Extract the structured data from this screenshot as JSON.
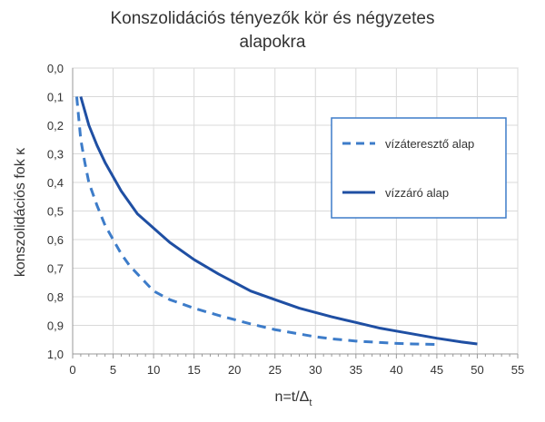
{
  "chart_data": {
    "type": "line",
    "title_lines": [
      "Konszolidációs tényezők kör és négyzetes",
      "alapokra"
    ],
    "xlabel": "n=t/Δt",
    "xlabel_main": "n=t/Δ",
    "xlabel_sub": "t",
    "ylabel": "konszolidációs fok κ",
    "xlim": [
      0,
      55
    ],
    "ylim": [
      0,
      1
    ],
    "y_inverted": true,
    "grid": true,
    "legend_position": "top-right",
    "x_ticks": [
      "0",
      "5",
      "10",
      "15",
      "20",
      "25",
      "30",
      "35",
      "40",
      "45",
      "50",
      "55"
    ],
    "y_ticks": [
      "0,0",
      "0,1",
      "0,2",
      "0,3",
      "0,4",
      "0,5",
      "0,6",
      "0,7",
      "0,8",
      "0,9",
      "1,0"
    ],
    "series": [
      {
        "name": "vízáteresztő alap",
        "color": "#3d7cc9",
        "dashed": true,
        "x": [
          0.5,
          1,
          1.5,
          2,
          3,
          4,
          5,
          6,
          7,
          8,
          9,
          10,
          12,
          15,
          18,
          20,
          22,
          25,
          28,
          30,
          32,
          35,
          38,
          40,
          42,
          45
        ],
        "y": [
          0.1,
          0.25,
          0.33,
          0.4,
          0.48,
          0.55,
          0.6,
          0.65,
          0.69,
          0.72,
          0.75,
          0.78,
          0.81,
          0.84,
          0.865,
          0.88,
          0.895,
          0.915,
          0.93,
          0.94,
          0.947,
          0.955,
          0.96,
          0.963,
          0.965,
          0.967
        ]
      },
      {
        "name": "vízzáró alap",
        "color": "#1f4fa3",
        "dashed": false,
        "x": [
          1,
          2,
          3,
          4,
          5,
          6,
          8,
          10,
          12,
          15,
          18,
          20,
          22,
          25,
          28,
          30,
          32,
          35,
          38,
          40,
          42,
          45,
          48,
          50
        ],
        "y": [
          0.1,
          0.2,
          0.27,
          0.33,
          0.38,
          0.43,
          0.51,
          0.56,
          0.61,
          0.67,
          0.72,
          0.75,
          0.78,
          0.81,
          0.84,
          0.855,
          0.87,
          0.89,
          0.91,
          0.92,
          0.93,
          0.945,
          0.958,
          0.965
        ]
      }
    ]
  }
}
